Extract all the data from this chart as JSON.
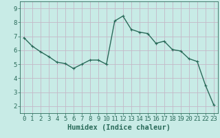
{
  "x": [
    0,
    1,
    2,
    3,
    4,
    5,
    6,
    7,
    8,
    9,
    10,
    11,
    12,
    13,
    14,
    15,
    16,
    17,
    18,
    19,
    20,
    21,
    22,
    23
  ],
  "y": [
    6.9,
    6.3,
    5.9,
    5.55,
    5.15,
    5.05,
    4.7,
    5.0,
    5.3,
    5.3,
    5.0,
    8.1,
    8.45,
    7.5,
    7.3,
    7.2,
    6.5,
    6.65,
    6.05,
    5.95,
    5.4,
    5.2,
    3.5,
    2.1
  ],
  "line_color": "#2a6b5a",
  "marker": "+",
  "marker_size": 3.5,
  "bg_color": "#c8ebe6",
  "grid_color_minor": "#b8ddd8",
  "grid_color_major": "#c4b8c8",
  "axis_color": "#2a6b5a",
  "xlabel": "Humidex (Indice chaleur)",
  "xlim": [
    -0.5,
    23.5
  ],
  "ylim": [
    1.5,
    9.5
  ],
  "yticks": [
    2,
    3,
    4,
    5,
    6,
    7,
    8,
    9
  ],
  "xticks": [
    0,
    1,
    2,
    3,
    4,
    5,
    6,
    7,
    8,
    9,
    10,
    11,
    12,
    13,
    14,
    15,
    16,
    17,
    18,
    19,
    20,
    21,
    22,
    23
  ],
  "xlabel_fontsize": 7.5,
  "tick_fontsize": 6.5,
  "line_width": 1.0,
  "marker_ew": 0.8
}
